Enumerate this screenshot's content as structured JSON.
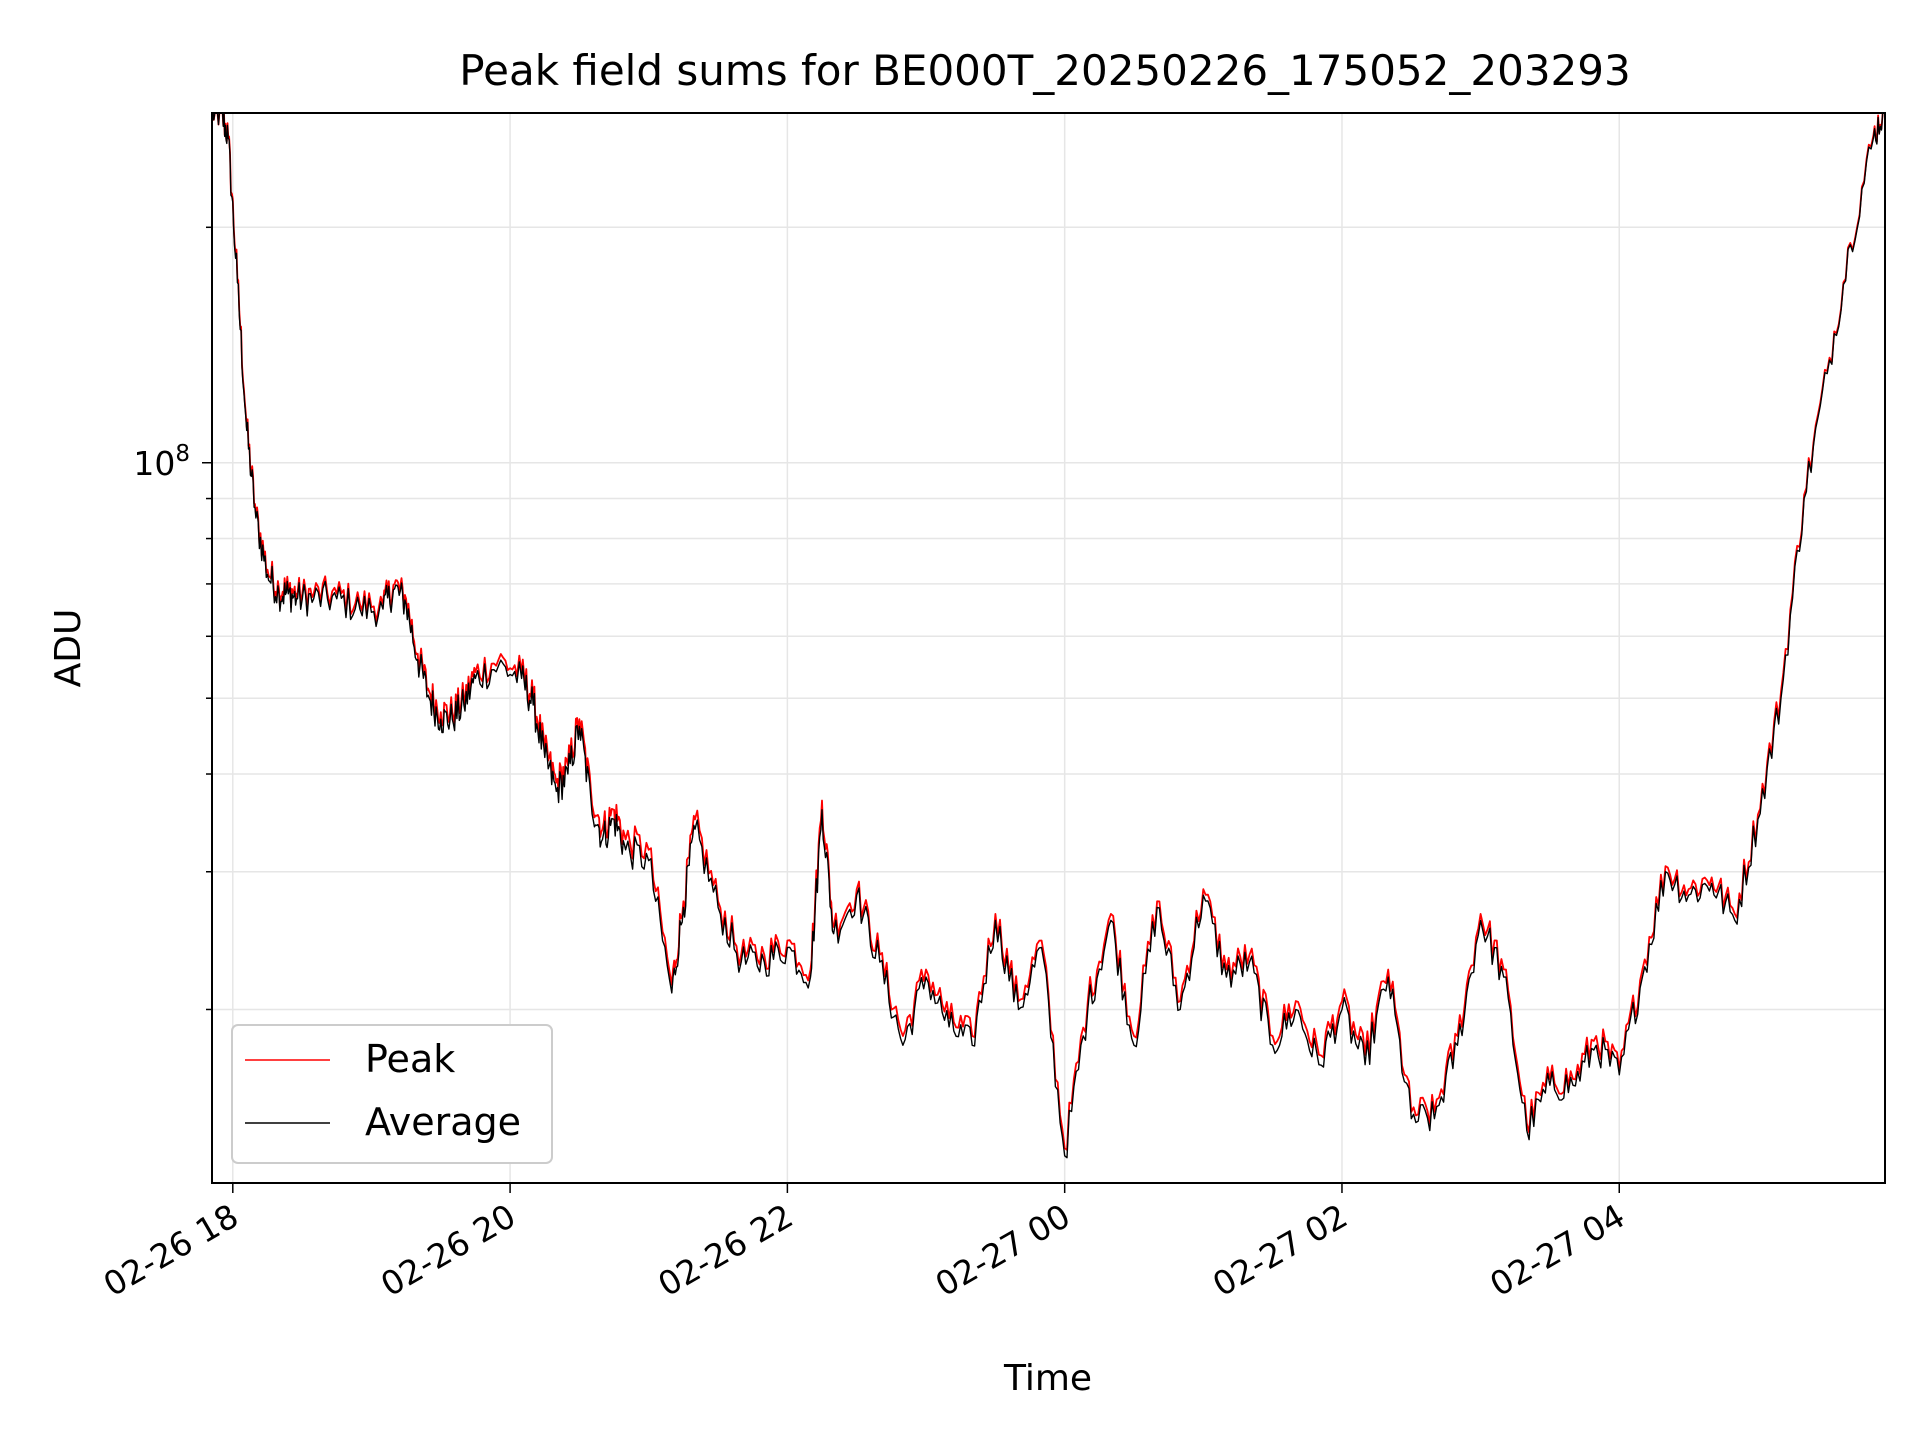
{
  "chart_data": {
    "type": "line",
    "title": "Peak field sums for BE000T_20250226_175052_203293",
    "xlabel": "Time",
    "ylabel": "ADU",
    "y_scale": "log",
    "ylim": [
      12000000,
      280000000
    ],
    "xlim": [
      "2025-02-26 17:51",
      "2025-02-27 05:55"
    ],
    "x_ticks": [
      "02-26 18",
      "02-26 20",
      "02-26 22",
      "02-27 00",
      "02-27 02",
      "02-27 04"
    ],
    "y_ticks": [
      {
        "base": "10",
        "exp": "8",
        "value": 100000000
      }
    ],
    "grid": true,
    "legend": {
      "placement": "lower-left",
      "entries": [
        "Peak",
        "Average"
      ]
    },
    "colors": {
      "Peak": "#ff0000",
      "Average": "#000000"
    },
    "series": [
      {
        "name": "Average",
        "x": [
          "2025-02-26 17:51",
          "2025-02-26 17:55",
          "2025-02-26 17:58",
          "2025-02-26 18:02",
          "2025-02-26 18:06",
          "2025-02-26 18:10",
          "2025-02-26 18:15",
          "2025-02-26 18:20",
          "2025-02-26 18:24",
          "2025-02-26 18:28",
          "2025-02-26 18:35",
          "2025-02-26 18:45",
          "2025-02-26 18:55",
          "2025-02-26 19:05",
          "2025-02-26 19:10",
          "2025-02-26 19:15",
          "2025-02-26 19:20",
          "2025-02-26 19:25",
          "2025-02-26 19:30",
          "2025-02-26 19:35",
          "2025-02-26 19:40",
          "2025-02-26 19:45",
          "2025-02-26 19:55",
          "2025-02-26 20:05",
          "2025-02-26 20:10",
          "2025-02-26 20:15",
          "2025-02-26 20:20",
          "2025-02-26 20:25",
          "2025-02-26 20:30",
          "2025-02-26 20:35",
          "2025-02-26 20:40",
          "2025-02-26 20:45",
          "2025-02-26 20:50",
          "2025-02-26 21:00",
          "2025-02-26 21:10",
          "2025-02-26 21:15",
          "2025-02-26 21:20",
          "2025-02-26 21:30",
          "2025-02-26 21:40",
          "2025-02-26 21:50",
          "2025-02-26 22:00",
          "2025-02-26 22:10",
          "2025-02-26 22:15",
          "2025-02-26 22:20",
          "2025-02-26 22:30",
          "2025-02-26 22:40",
          "2025-02-26 22:50",
          "2025-02-26 23:00",
          "2025-02-26 23:10",
          "2025-02-26 23:20",
          "2025-02-26 23:30",
          "2025-02-26 23:40",
          "2025-02-26 23:50",
          "2025-02-27 00:00",
          "2025-02-27 00:10",
          "2025-02-27 00:20",
          "2025-02-27 00:30",
          "2025-02-27 00:40",
          "2025-02-27 00:50",
          "2025-02-27 01:00",
          "2025-02-27 01:10",
          "2025-02-27 01:20",
          "2025-02-27 01:30",
          "2025-02-27 01:40",
          "2025-02-27 01:50",
          "2025-02-27 02:00",
          "2025-02-27 02:10",
          "2025-02-27 02:20",
          "2025-02-27 02:30",
          "2025-02-27 02:40",
          "2025-02-27 02:50",
          "2025-02-27 03:00",
          "2025-02-27 03:10",
          "2025-02-27 03:20",
          "2025-02-27 03:30",
          "2025-02-27 03:40",
          "2025-02-27 03:50",
          "2025-02-27 04:00",
          "2025-02-27 04:10",
          "2025-02-27 04:20",
          "2025-02-27 04:30",
          "2025-02-27 04:40",
          "2025-02-27 04:50",
          "2025-02-27 05:00",
          "2025-02-27 05:10",
          "2025-02-27 05:20",
          "2025-02-27 05:30",
          "2025-02-27 05:40",
          "2025-02-27 05:50",
          "2025-02-27 05:55"
        ],
        "y": [
          280000000,
          280000000,
          260000000,
          170000000,
          110000000,
          85000000,
          72000000,
          68000000,
          68000000,
          67000000,
          67000000,
          67000000,
          65000000,
          65000000,
          69000000,
          66000000,
          56000000,
          50000000,
          47000000,
          47000000,
          49000000,
          53000000,
          55000000,
          53000000,
          49000000,
          42000000,
          38000000,
          40000000,
          46000000,
          37000000,
          33000000,
          35000000,
          32000000,
          31000000,
          21000000,
          27000000,
          34000000,
          27000000,
          23000000,
          23000000,
          24000000,
          22000000,
          36000000,
          25000000,
          28000000,
          23000000,
          18000000,
          22000000,
          19000000,
          18000000,
          26000000,
          20000000,
          24000000,
          13000000,
          20000000,
          26000000,
          18000000,
          27000000,
          20000000,
          28000000,
          22000000,
          23000000,
          18000000,
          20000000,
          17000000,
          20000000,
          17000000,
          22000000,
          14500000,
          14500000,
          18000000,
          26000000,
          22000000,
          14000000,
          16000000,
          16000000,
          18000000,
          16500000,
          22000000,
          30000000,
          28000000,
          29000000,
          26000000,
          35000000,
          50000000,
          90000000,
          130000000,
          190000000,
          260000000,
          285000000
        ]
      },
      {
        "name": "Peak",
        "x": [
          "2025-02-26 17:51",
          "2025-02-26 17:55",
          "2025-02-26 17:58",
          "2025-02-26 18:02",
          "2025-02-26 18:06",
          "2025-02-26 18:10",
          "2025-02-26 18:15",
          "2025-02-26 18:20",
          "2025-02-26 18:24",
          "2025-02-26 18:28",
          "2025-02-26 18:35",
          "2025-02-26 18:45",
          "2025-02-26 18:55",
          "2025-02-26 19:05",
          "2025-02-26 19:10",
          "2025-02-26 19:15",
          "2025-02-26 19:20",
          "2025-02-26 19:25",
          "2025-02-26 19:30",
          "2025-02-26 19:35",
          "2025-02-26 19:40",
          "2025-02-26 19:45",
          "2025-02-26 19:55",
          "2025-02-26 20:05",
          "2025-02-26 20:10",
          "2025-02-26 20:15",
          "2025-02-26 20:20",
          "2025-02-26 20:25",
          "2025-02-26 20:30",
          "2025-02-26 20:35",
          "2025-02-26 20:40",
          "2025-02-26 20:45",
          "2025-02-26 20:50",
          "2025-02-26 21:00",
          "2025-02-26 21:10",
          "2025-02-26 21:15",
          "2025-02-26 21:20",
          "2025-02-26 21:30",
          "2025-02-26 21:40",
          "2025-02-26 21:50",
          "2025-02-26 22:00",
          "2025-02-26 22:10",
          "2025-02-26 22:15",
          "2025-02-26 22:20",
          "2025-02-26 22:30",
          "2025-02-26 22:40",
          "2025-02-26 22:50",
          "2025-02-26 23:00",
          "2025-02-26 23:10",
          "2025-02-26 23:20",
          "2025-02-26 23:30",
          "2025-02-26 23:40",
          "2025-02-26 23:50",
          "2025-02-27 00:00",
          "2025-02-27 00:10",
          "2025-02-27 00:20",
          "2025-02-27 00:30",
          "2025-02-27 00:40",
          "2025-02-27 00:50",
          "2025-02-27 01:00",
          "2025-02-27 01:10",
          "2025-02-27 01:20",
          "2025-02-27 01:30",
          "2025-02-27 01:40",
          "2025-02-27 01:50",
          "2025-02-27 02:00",
          "2025-02-27 02:10",
          "2025-02-27 02:20",
          "2025-02-27 02:30",
          "2025-02-27 02:40",
          "2025-02-27 02:50",
          "2025-02-27 03:00",
          "2025-02-27 03:10",
          "2025-02-27 03:20",
          "2025-02-27 03:30",
          "2025-02-27 03:40",
          "2025-02-27 03:50",
          "2025-02-27 04:00",
          "2025-02-27 04:10",
          "2025-02-27 04:20",
          "2025-02-27 04:30",
          "2025-02-27 04:40",
          "2025-02-27 04:50",
          "2025-02-27 05:00",
          "2025-02-27 05:10",
          "2025-02-27 05:20",
          "2025-02-27 05:30",
          "2025-02-27 05:40",
          "2025-02-27 05:50",
          "2025-02-27 05:55"
        ],
        "y": [
          280000000,
          280000000,
          262000000,
          172000000,
          111000000,
          86000000,
          73000000,
          69000000,
          69000000,
          68000000,
          68000000,
          68000000,
          66000000,
          66000000,
          70000000,
          67000000,
          57000000,
          51000000,
          48000000,
          48000000,
          50000000,
          54000000,
          56000000,
          54000000,
          50000000,
          43000000,
          39000000,
          41000000,
          47000000,
          38000000,
          34000000,
          36000000,
          33000000,
          32000000,
          21500000,
          27500000,
          35000000,
          27500000,
          23500000,
          23500000,
          24500000,
          22500000,
          37000000,
          25500000,
          28500000,
          23500000,
          18500000,
          22500000,
          19500000,
          18500000,
          26500000,
          20500000,
          24500000,
          13300000,
          20500000,
          26500000,
          18500000,
          27500000,
          20500000,
          28500000,
          22500000,
          23500000,
          18500000,
          20500000,
          17500000,
          20500000,
          17500000,
          22500000,
          14800000,
          14800000,
          18500000,
          26500000,
          22500000,
          14300000,
          16300000,
          16300000,
          18500000,
          16800000,
          22500000,
          30500000,
          28500000,
          29500000,
          26500000,
          35500000,
          51000000,
          91000000,
          131000000,
          191000000,
          262000000,
          286000000
        ]
      }
    ]
  }
}
